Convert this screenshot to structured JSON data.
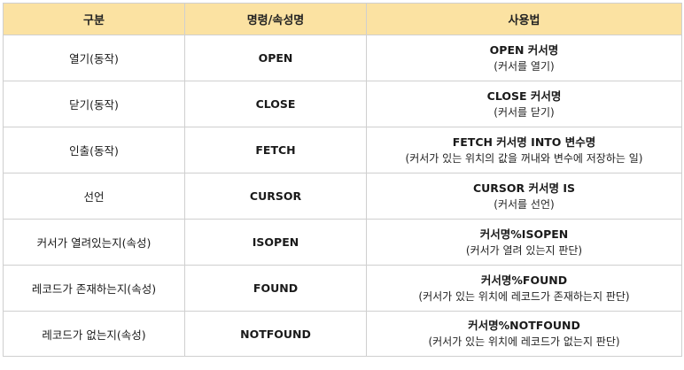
{
  "header": {
    "col1": "구분",
    "col2": "명령/속성명",
    "col3": "사용법"
  },
  "rows": [
    {
      "category": "열기(동작)",
      "command": "OPEN",
      "usage": "OPEN 커서명",
      "note": "(커서를 열기)"
    },
    {
      "category": "닫기(동작)",
      "command": "CLOSE",
      "usage": "CLOSE 커서명",
      "note": "(커서를 닫기)"
    },
    {
      "category": "인출(동작)",
      "command": "FETCH",
      "usage": "FETCH 커서명 INTO 변수명",
      "note": "(커서가 있는 위치의 값을 꺼내와 변수에 저장하는 일)"
    },
    {
      "category": "선언",
      "command": "CURSOR",
      "usage": "CURSOR 커서명 IS",
      "note": "(커서를 선언)"
    },
    {
      "category": "커서가 열려있는지(속성)",
      "command": "ISOPEN",
      "usage": "커서명%ISOPEN",
      "note": "(커서가 열려 있는지 판단)"
    },
    {
      "category": "레코드가 존재하는지(속성)",
      "command": "FOUND",
      "usage": "커서명%FOUND",
      "note": "(커서가 있는 위치에 레코드가 존재하는지 판단)"
    },
    {
      "category": "레코드가 없는지(속성)",
      "command": "NOTFOUND",
      "usage": "커서명%NOTFOUND",
      "note": "(커서가 있는 위치에 레코드가 없는지 판단)"
    }
  ],
  "colors": {
    "header_background": "#fbe2a2",
    "border": "#cfcfcf"
  }
}
